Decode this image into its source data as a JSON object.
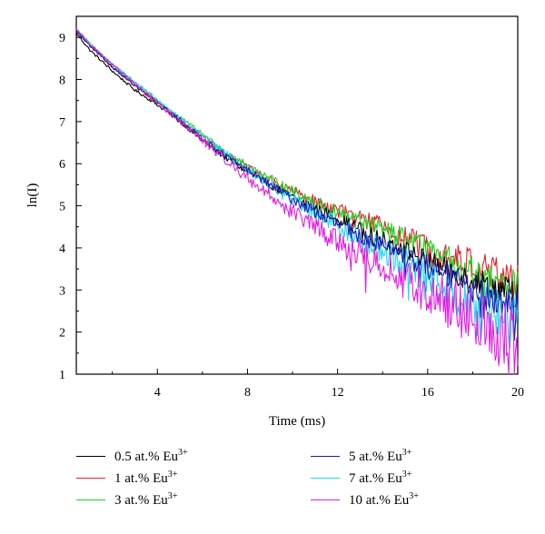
{
  "chart_data": {
    "type": "line",
    "title": "",
    "xlabel": "Time (ms)",
    "ylabel": "ln(I)",
    "xlim": [
      0.4,
      20
    ],
    "ylim": [
      1,
      9.5
    ],
    "xticks": [
      4,
      8,
      12,
      16,
      20
    ],
    "yticks": [
      1,
      2,
      3,
      4,
      5,
      6,
      7,
      8,
      9
    ],
    "grid": false,
    "legend_position": "bottom",
    "legend_superscript": "3+",
    "series": [
      {
        "name": "0.5 at.% Eu",
        "color": "#000000",
        "noise": 0.15,
        "x": [
          0.4,
          1,
          2,
          3,
          4,
          5,
          6,
          7,
          8,
          9,
          10,
          11,
          12,
          13,
          14,
          15,
          16,
          17,
          18,
          19,
          20
        ],
        "y": [
          9.1,
          8.7,
          8.2,
          7.75,
          7.4,
          7.0,
          6.55,
          6.15,
          5.8,
          5.5,
          5.2,
          4.95,
          4.7,
          4.45,
          4.2,
          3.95,
          3.7,
          3.45,
          3.25,
          3.05,
          2.9
        ]
      },
      {
        "name": "1 at.% Eu",
        "color": "#e8202a",
        "noise": 0.2,
        "x": [
          0.4,
          1,
          2,
          3,
          4,
          5,
          6,
          7,
          8,
          9,
          10,
          11,
          12,
          13,
          14,
          15,
          16,
          17,
          18,
          19,
          20
        ],
        "y": [
          9.15,
          8.8,
          8.3,
          7.85,
          7.45,
          7.05,
          6.65,
          6.25,
          5.9,
          5.6,
          5.35,
          5.1,
          4.9,
          4.7,
          4.5,
          4.25,
          4.0,
          3.8,
          3.6,
          3.4,
          3.2
        ]
      },
      {
        "name": "3 at.% Eu",
        "color": "#1fd11f",
        "noise": 0.18,
        "x": [
          0.4,
          1,
          2,
          3,
          4,
          5,
          6,
          7,
          8,
          9,
          10,
          11,
          12,
          13,
          14,
          15,
          16,
          17,
          18,
          19,
          20
        ],
        "y": [
          9.2,
          8.85,
          8.35,
          7.9,
          7.5,
          7.1,
          6.7,
          6.3,
          5.95,
          5.65,
          5.35,
          5.1,
          4.85,
          4.65,
          4.45,
          4.2,
          3.95,
          3.7,
          3.45,
          3.2,
          3.0
        ]
      },
      {
        "name": "5 at.% Eu",
        "color": "#1c1cb0",
        "noise": 0.18,
        "x": [
          0.4,
          1,
          2,
          3,
          4,
          5,
          6,
          7,
          8,
          9,
          10,
          11,
          12,
          13,
          14,
          15,
          16,
          17,
          18,
          19,
          20
        ],
        "y": [
          9.15,
          8.8,
          8.3,
          7.85,
          7.45,
          7.05,
          6.6,
          6.2,
          5.85,
          5.5,
          5.15,
          4.85,
          4.55,
          4.3,
          4.05,
          3.8,
          3.55,
          3.3,
          3.05,
          2.8,
          2.55
        ]
      },
      {
        "name": "7 at.% Eu",
        "color": "#1fd7f0",
        "noise": 0.28,
        "x": [
          0.4,
          1,
          2,
          3,
          4,
          5,
          6,
          7,
          8,
          9,
          10,
          11,
          12,
          13,
          14,
          15,
          16,
          17,
          18,
          19,
          20
        ],
        "y": [
          9.2,
          8.85,
          8.35,
          7.95,
          7.5,
          7.1,
          6.65,
          6.25,
          5.85,
          5.5,
          5.15,
          4.85,
          4.55,
          4.25,
          3.95,
          3.65,
          3.35,
          3.05,
          2.75,
          2.45,
          2.2
        ]
      },
      {
        "name": "10 at.% Eu",
        "color": "#e21de2",
        "noise": 0.35,
        "x": [
          0.4,
          1,
          2,
          3,
          4,
          5,
          6,
          7,
          8,
          9,
          10,
          11,
          12,
          13,
          14,
          15,
          16,
          17,
          18,
          19,
          20
        ],
        "y": [
          9.2,
          8.85,
          8.35,
          7.9,
          7.45,
          7.0,
          6.55,
          6.1,
          5.65,
          5.25,
          4.85,
          4.5,
          4.15,
          3.85,
          3.55,
          3.25,
          2.95,
          2.65,
          2.35,
          2.0,
          1.7
        ]
      }
    ]
  }
}
